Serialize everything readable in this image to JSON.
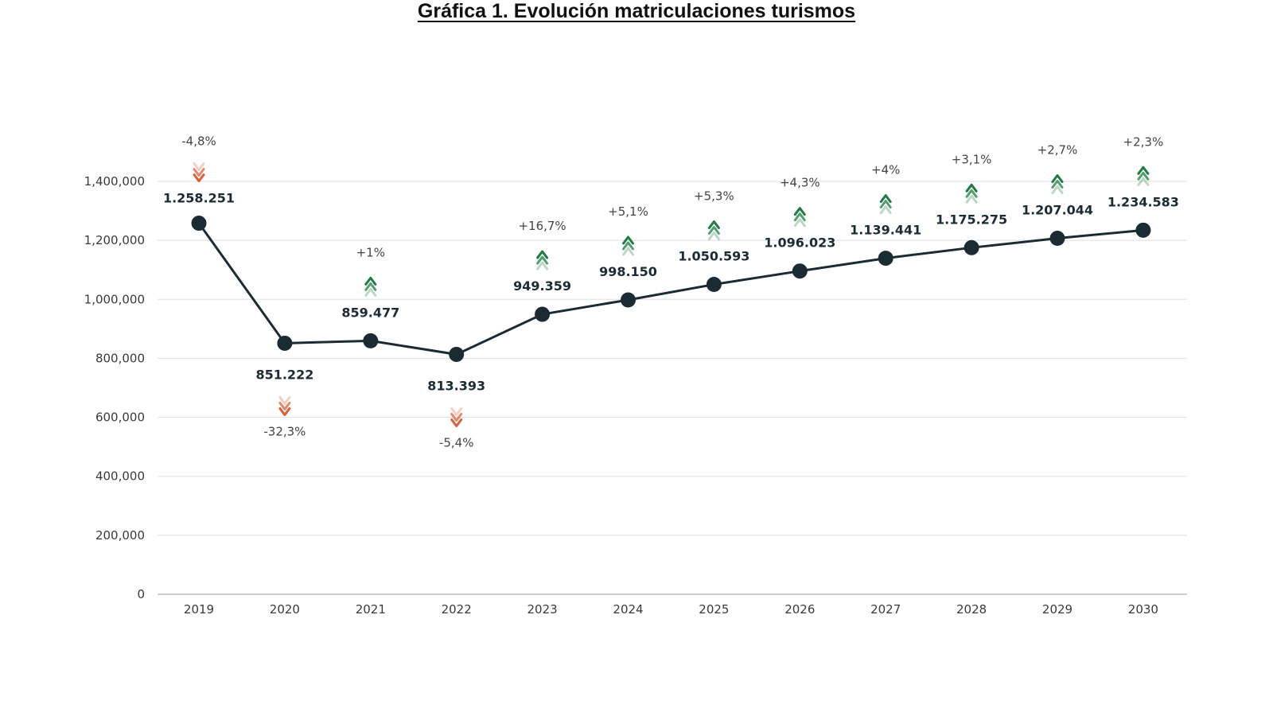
{
  "chart_data": {
    "type": "line",
    "title": "Gráfica 1. Evolución matriculaciones turismos",
    "xlabel": "",
    "ylabel": "",
    "ylim": [
      0,
      1400000
    ],
    "y_ticks": [
      0,
      200000,
      400000,
      600000,
      800000,
      1000000,
      1200000,
      1400000
    ],
    "y_tick_labels": [
      "0",
      "200,000",
      "400,000",
      "600,000",
      "800,000",
      "1,000,000",
      "1,200,000",
      "1,400,000"
    ],
    "grid": true,
    "categories": [
      "2019",
      "2020",
      "2021",
      "2022",
      "2023",
      "2024",
      "2025",
      "2026",
      "2027",
      "2028",
      "2029",
      "2030"
    ],
    "series": [
      {
        "values": [
          1258251,
          851222,
          859477,
          813393,
          949359,
          998150,
          1050593,
          1096023,
          1139441,
          1175275,
          1207044,
          1234583
        ],
        "data_labels": [
          "1.258.251",
          "851.222",
          "859.477",
          "813.393",
          "949.359",
          "998.150",
          "1.050.593",
          "1.096.023",
          "1.139.441",
          "1.175.275",
          "1.207.044",
          "1.234.583"
        ],
        "pct_change_labels": [
          "-4,8%",
          "-32,3%",
          "+1%",
          "-5,4%",
          "+16,7%",
          "+5,1%",
          "+5,3%",
          "+4,3%",
          "+4%",
          "+3,1%",
          "+2,7%",
          "+2,3%"
        ],
        "trend": [
          "down",
          "down",
          "up",
          "down",
          "up",
          "up",
          "up",
          "up",
          "up",
          "up",
          "up",
          "up"
        ]
      }
    ],
    "colors": {
      "line": "#1b2b33",
      "marker": "#1b2b33",
      "grid": "#e4e4e4",
      "axis": "#bdbdbd",
      "up_arrow": "#1e7b43",
      "down_arrow": "#d9603b"
    }
  }
}
